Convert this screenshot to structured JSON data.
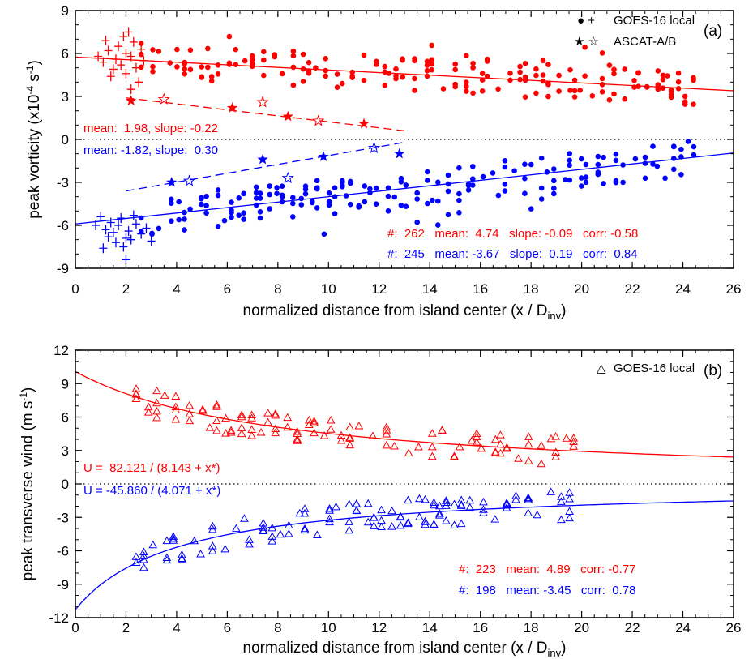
{
  "colors": {
    "red": "#ff0000",
    "blue": "#0000ff",
    "axis": "#000000"
  },
  "chart_data": [
    {
      "type": "scatter",
      "panel_label": "(a)",
      "xlabel": "normalized distance from island center (x / D",
      "xlabel_sub": "inv",
      "xlabel_end": ")",
      "ylabel_pre": "peak vorticity (x10",
      "ylabel_sup1": "-4",
      "ylabel_mid": " s",
      "ylabel_sup2": "-1",
      "ylabel_end": ")",
      "xlim": [
        0,
        26
      ],
      "ylim": [
        -9,
        9
      ],
      "x_ticks": [
        "0",
        "2",
        "4",
        "6",
        "8",
        "10",
        "12",
        "14",
        "16",
        "18",
        "20",
        "22",
        "24",
        "26"
      ],
      "y_ticks": [
        "9",
        "6",
        "3",
        "0",
        "-3",
        "-6",
        "-9"
      ],
      "zero_line": "dotted",
      "legend": [
        {
          "markers": "● +",
          "label": "GOES-16 local"
        },
        {
          "markers": "★ ☆",
          "label": "ASCAT-A/B"
        }
      ],
      "annotations": {
        "red_ascat": "mean:  1.98, slope: -0.22",
        "blue_ascat": "mean: -1.82, slope:  0.30",
        "red_stats": "#:  262   mean:  4.74   slope: -0.09   corr: -0.58",
        "blue_stats": "#:  245   mean: -3.67   slope:  0.19   corr:  0.84"
      },
      "series": [
        {
          "kind": "fit",
          "color": "red",
          "style": "solid",
          "x": [
            0,
            26
          ],
          "y": [
            5.75,
            3.4
          ]
        },
        {
          "kind": "fit",
          "color": "blue",
          "style": "solid",
          "x": [
            0,
            26
          ],
          "y": [
            -5.9,
            -0.95
          ]
        },
        {
          "kind": "fit",
          "color": "red",
          "style": "dashed",
          "x": [
            2,
            13
          ],
          "y": [
            2.9,
            0.6
          ]
        },
        {
          "kind": "fit",
          "color": "blue",
          "style": "dashed",
          "x": [
            2,
            13
          ],
          "y": [
            -3.6,
            -0.2
          ]
        },
        {
          "kind": "ascat",
          "color": "red",
          "filled": [
            [
              2.2,
              2.7
            ],
            [
              6.2,
              2.2
            ],
            [
              8.4,
              1.6
            ],
            [
              11.4,
              1.1
            ]
          ],
          "open": [
            [
              3.5,
              2.8
            ],
            [
              7.4,
              2.6
            ],
            [
              9.6,
              1.3
            ]
          ]
        },
        {
          "kind": "ascat",
          "color": "blue",
          "filled": [
            [
              3.8,
              -3.0
            ],
            [
              7.4,
              -1.4
            ],
            [
              9.8,
              -1.2
            ],
            [
              12.8,
              -1.0
            ]
          ],
          "open": [
            [
              4.5,
              -2.9
            ],
            [
              8.4,
              -2.7
            ],
            [
              11.8,
              -0.6
            ]
          ]
        },
        {
          "kind": "plus",
          "color": "red",
          "points": [
            [
              0.9,
              5.8
            ],
            [
              1.1,
              5.4
            ],
            [
              1.3,
              6.2
            ],
            [
              1.5,
              4.9
            ],
            [
              1.6,
              5.6
            ],
            [
              1.7,
              6.5
            ],
            [
              1.8,
              5.2
            ],
            [
              1.9,
              7.2
            ],
            [
              2.0,
              6.0
            ],
            [
              2.0,
              4.6
            ],
            [
              2.1,
              7.5
            ],
            [
              2.2,
              5.8
            ],
            [
              2.3,
              6.8
            ],
            [
              2.4,
              5.0
            ],
            [
              2.5,
              4.0
            ],
            [
              2.6,
              6.3
            ],
            [
              2.7,
              5.5
            ],
            [
              1.4,
              4.4
            ],
            [
              1.2,
              6.9
            ],
            [
              2.2,
              3.5
            ]
          ]
        },
        {
          "kind": "plus",
          "color": "blue",
          "points": [
            [
              0.8,
              -6.0
            ],
            [
              1.0,
              -5.4
            ],
            [
              1.2,
              -6.3
            ],
            [
              1.3,
              -6.8
            ],
            [
              1.4,
              -5.8
            ],
            [
              1.5,
              -6.5
            ],
            [
              1.6,
              -7.2
            ],
            [
              1.7,
              -6.0
            ],
            [
              1.8,
              -5.5
            ],
            [
              1.9,
              -7.5
            ],
            [
              2.0,
              -6.9
            ],
            [
              2.0,
              -8.4
            ],
            [
              2.1,
              -6.4
            ],
            [
              2.2,
              -7.0
            ],
            [
              2.4,
              -5.9
            ],
            [
              2.6,
              -6.6
            ],
            [
              2.8,
              -6.2
            ],
            [
              3.0,
              -7.1
            ],
            [
              1.1,
              -7.6
            ],
            [
              2.3,
              -5.3
            ]
          ]
        }
      ]
    },
    {
      "type": "scatter",
      "panel_label": "(b)",
      "xlabel": "normalized distance from island center (x / D",
      "xlabel_sub": "inv",
      "xlabel_end": ")",
      "ylabel_pre": "peak transverse wind (m s",
      "ylabel_sup1": "-1",
      "ylabel_end": ")",
      "xlim": [
        0,
        26
      ],
      "ylim": [
        -12,
        12
      ],
      "x_ticks": [
        "0",
        "2",
        "4",
        "6",
        "8",
        "10",
        "12",
        "14",
        "16",
        "18",
        "20",
        "22",
        "24",
        "26"
      ],
      "y_ticks": [
        "12",
        "9",
        "6",
        "3",
        "0",
        "-3",
        "-6",
        "-9",
        "-12"
      ],
      "zero_line": "dotted",
      "legend": [
        {
          "markers": "△",
          "label": "GOES-16 local"
        }
      ],
      "annotations": {
        "red_fit": "U =  82.121 / (8.143 + x*)",
        "blue_fit": "U = -45.860 / (4.071 + x*)",
        "red_stats": "#:  223   mean:  4.89   corr: -0.77",
        "blue_stats": "#:  198   mean: -3.45   corr:  0.78"
      },
      "series": [
        {
          "kind": "curve",
          "color": "red",
          "a": 82.121,
          "b": 8.143
        },
        {
          "kind": "curve",
          "color": "blue",
          "a": -45.86,
          "b": 4.071
        }
      ]
    }
  ]
}
